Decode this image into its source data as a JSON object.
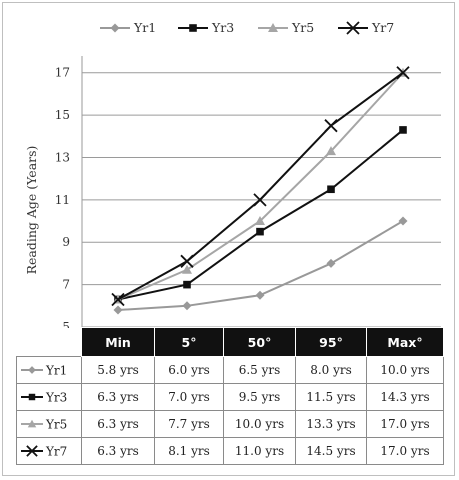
{
  "chart_data": {
    "type": "line",
    "ylabel": "Reading Age (Years)",
    "yticks": [
      5,
      7,
      9,
      11,
      13,
      15,
      17
    ],
    "ylim": [
      5,
      17.6
    ],
    "grid": "horizontal",
    "legend_position": "top",
    "categories": [
      "Min",
      "5°",
      "50°",
      "95°",
      "Max°"
    ],
    "series": [
      {
        "name": "Yr1",
        "color": "#999999",
        "marker": "diamond",
        "values": [
          5.8,
          6.0,
          6.5,
          8.0,
          10.0
        ]
      },
      {
        "name": "Yr3",
        "color": "#111111",
        "marker": "square",
        "values": [
          6.3,
          7.0,
          9.5,
          11.5,
          14.3
        ]
      },
      {
        "name": "Yr5",
        "color": "#a6a6a6",
        "marker": "triangle",
        "values": [
          6.3,
          7.7,
          10.0,
          13.3,
          17.0
        ]
      },
      {
        "name": "Yr7",
        "color": "#111111",
        "marker": "x",
        "values": [
          6.3,
          8.1,
          11.0,
          14.5,
          17.0
        ]
      }
    ]
  },
  "table": {
    "headers": [
      "Min",
      "5°",
      "50°",
      "95°",
      "Max°"
    ],
    "rows": [
      {
        "series": "Yr1",
        "cells": [
          "5.8 yrs",
          "6.0 yrs",
          "6.5 yrs",
          "8.0 yrs",
          "10.0 yrs"
        ]
      },
      {
        "series": "Yr3",
        "cells": [
          "6.3 yrs",
          "7.0 yrs",
          "9.5 yrs",
          "11.5 yrs",
          "14.3 yrs"
        ]
      },
      {
        "series": "Yr5",
        "cells": [
          "6.3 yrs",
          "7.7 yrs",
          "10.0 yrs",
          "13.3 yrs",
          "17.0 yrs"
        ]
      },
      {
        "series": "Yr7",
        "cells": [
          "6.3 yrs",
          "8.1 yrs",
          "11.0 yrs",
          "14.5 yrs",
          "17.0 yrs"
        ]
      }
    ]
  }
}
